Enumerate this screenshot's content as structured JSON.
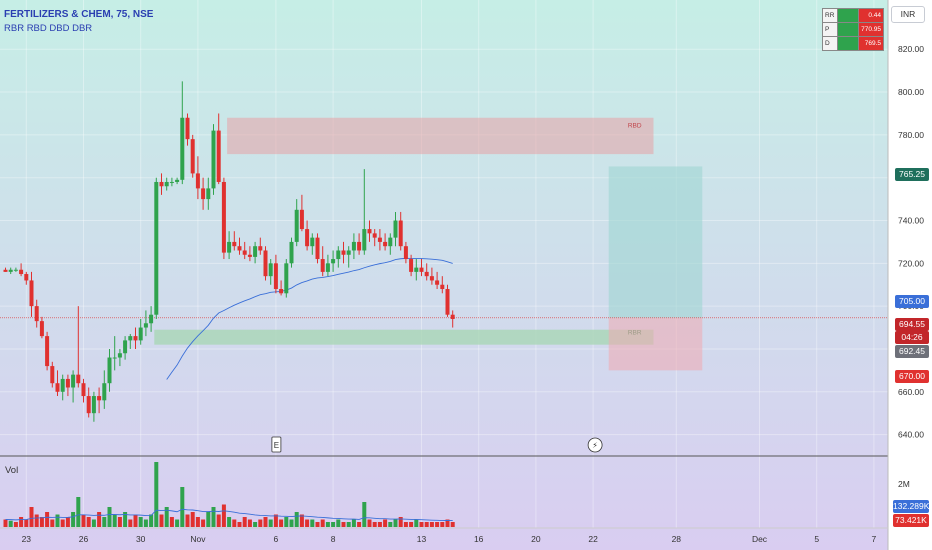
{
  "header": {
    "title": "FERTILIZERS & CHEM, 75, NSE",
    "indicator": "RBR RBD DBD DBR"
  },
  "currency": "INR",
  "rr_panel": {
    "rows": [
      {
        "label": "RR",
        "value": "0.44"
      },
      {
        "label": "P",
        "value": "770.95"
      },
      {
        "label": "D",
        "value": "769.5"
      }
    ]
  },
  "zones": {
    "rbd": {
      "label": "RBD",
      "top": 788,
      "bottom": 771
    },
    "rbr": {
      "label": "RBR",
      "top": 689,
      "bottom": 682
    }
  },
  "position": {
    "entry": 694.55,
    "target": 765.25,
    "stop": 670.0
  },
  "price_tags": {
    "target": "765.25",
    "ema": "705.00",
    "last": "694.55",
    "countdown": "04:26",
    "gray": "692.45",
    "stop": "670.00"
  },
  "volume": {
    "label": "Vol",
    "tag_ma": "132.289K",
    "tag_last": "73.421K",
    "axis_label": "2M"
  },
  "markers": {
    "earnings": "E",
    "dividend": "⚡"
  },
  "colors": {
    "up": "#2fa34d",
    "down": "#e0312f",
    "ema": "#3a6fd8",
    "bg_top": "#c9efe7",
    "bg_bottom": "#d9cbf0"
  },
  "chart_data": {
    "type": "candlestick",
    "y_ticks": [
      640,
      660,
      680,
      700,
      720,
      740,
      760,
      780,
      800,
      820
    ],
    "y_tick_labels": [
      "640.00",
      "660.00",
      "680.00",
      "700.00",
      "720.00",
      "740.00",
      "760.00",
      "780.00",
      "800.00",
      "820.00"
    ],
    "x_labels": [
      {
        "label": "23",
        "idx": 4
      },
      {
        "label": "26",
        "idx": 15
      },
      {
        "label": "30",
        "idx": 26
      },
      {
        "label": "Nov",
        "idx": 37
      },
      {
        "label": "6",
        "idx": 52
      },
      {
        "label": "8",
        "idx": 63
      },
      {
        "label": "13",
        "idx": 80
      },
      {
        "label": "16",
        "idx": 91
      },
      {
        "label": "20",
        "idx": 102
      },
      {
        "label": "22",
        "idx": 113
      },
      {
        "label": "28",
        "idx": 129
      },
      {
        "label": "Dec",
        "idx": 145
      },
      {
        "label": "5",
        "idx": 156
      },
      {
        "label": "7",
        "idx": 167
      }
    ],
    "candles": [
      [
        717,
        718,
        716,
        716
      ],
      [
        716,
        718,
        715,
        717
      ],
      [
        717,
        718,
        716,
        717
      ],
      [
        717,
        720,
        714,
        715
      ],
      [
        715,
        716,
        710,
        712
      ],
      [
        712,
        716,
        695,
        700
      ],
      [
        700,
        703,
        690,
        693
      ],
      [
        693,
        695,
        685,
        686
      ],
      [
        686,
        688,
        670,
        672
      ],
      [
        672,
        674,
        662,
        664
      ],
      [
        664,
        670,
        658,
        660
      ],
      [
        660,
        668,
        656,
        666
      ],
      [
        666,
        668,
        658,
        662
      ],
      [
        662,
        670,
        655,
        668
      ],
      [
        668,
        700,
        662,
        664
      ],
      [
        664,
        666,
        655,
        658
      ],
      [
        658,
        662,
        648,
        650
      ],
      [
        650,
        660,
        646,
        658
      ],
      [
        658,
        662,
        650,
        656
      ],
      [
        656,
        670,
        652,
        664
      ],
      [
        664,
        680,
        660,
        676
      ],
      [
        676,
        686,
        670,
        676
      ],
      [
        676,
        680,
        672,
        678
      ],
      [
        678,
        686,
        675,
        684
      ],
      [
        684,
        687,
        680,
        686
      ],
      [
        686,
        690,
        680,
        684
      ],
      [
        684,
        694,
        682,
        690
      ],
      [
        690,
        698,
        686,
        692
      ],
      [
        692,
        700,
        688,
        696
      ],
      [
        696,
        760,
        694,
        758
      ],
      [
        758,
        762,
        752,
        756
      ],
      [
        756,
        760,
        754,
        758
      ],
      [
        758,
        760,
        756,
        758
      ],
      [
        758,
        760,
        757,
        759
      ],
      [
        759,
        805,
        757,
        788
      ],
      [
        788,
        790,
        775,
        778
      ],
      [
        778,
        780,
        760,
        762
      ],
      [
        762,
        770,
        750,
        755
      ],
      [
        755,
        760,
        745,
        750
      ],
      [
        750,
        760,
        745,
        755
      ],
      [
        755,
        785,
        752,
        782
      ],
      [
        782,
        790,
        757,
        758
      ],
      [
        758,
        760,
        722,
        725
      ],
      [
        725,
        735,
        722,
        730
      ],
      [
        730,
        735,
        726,
        728
      ],
      [
        728,
        732,
        724,
        726
      ],
      [
        726,
        730,
        722,
        724
      ],
      [
        724,
        728,
        721,
        723
      ],
      [
        723,
        730,
        720,
        728
      ],
      [
        728,
        732,
        724,
        726
      ],
      [
        726,
        728,
        712,
        714
      ],
      [
        714,
        722,
        710,
        720
      ],
      [
        720,
        724,
        706,
        708
      ],
      [
        708,
        712,
        705,
        706
      ],
      [
        706,
        722,
        704,
        720
      ],
      [
        720,
        732,
        718,
        730
      ],
      [
        730,
        750,
        728,
        745
      ],
      [
        745,
        752,
        735,
        736
      ],
      [
        736,
        740,
        726,
        728
      ],
      [
        728,
        734,
        724,
        732
      ],
      [
        732,
        734,
        720,
        722
      ],
      [
        722,
        728,
        714,
        716
      ],
      [
        716,
        724,
        714,
        720
      ],
      [
        720,
        726,
        716,
        722
      ],
      [
        722,
        728,
        718,
        726
      ],
      [
        726,
        730,
        720,
        724
      ],
      [
        724,
        728,
        718,
        726
      ],
      [
        726,
        734,
        722,
        730
      ],
      [
        730,
        734,
        724,
        726
      ],
      [
        726,
        764,
        724,
        736
      ],
      [
        736,
        740,
        730,
        734
      ],
      [
        734,
        736,
        728,
        732
      ],
      [
        732,
        736,
        726,
        730
      ],
      [
        730,
        734,
        726,
        728
      ],
      [
        728,
        734,
        724,
        732
      ],
      [
        732,
        744,
        728,
        740
      ],
      [
        740,
        744,
        726,
        728
      ],
      [
        728,
        730,
        720,
        722
      ],
      [
        722,
        724,
        714,
        716
      ],
      [
        716,
        722,
        712,
        718
      ],
      [
        718,
        722,
        714,
        716
      ],
      [
        716,
        720,
        712,
        714
      ],
      [
        714,
        718,
        710,
        712
      ],
      [
        712,
        716,
        708,
        710
      ],
      [
        710,
        714,
        706,
        708
      ],
      [
        708,
        710,
        695,
        696
      ],
      [
        696,
        698,
        690,
        694
      ]
    ],
    "volume_units": "relative",
    "volumes": [
      [
        0.3,
        0
      ],
      [
        0.25,
        1
      ],
      [
        0.2,
        0
      ],
      [
        0.4,
        0
      ],
      [
        0.3,
        0
      ],
      [
        0.8,
        0
      ],
      [
        0.5,
        0
      ],
      [
        0.4,
        0
      ],
      [
        0.6,
        0
      ],
      [
        0.3,
        0
      ],
      [
        0.5,
        1
      ],
      [
        0.3,
        0
      ],
      [
        0.4,
        0
      ],
      [
        0.6,
        1
      ],
      [
        1.2,
        1
      ],
      [
        0.5,
        0
      ],
      [
        0.4,
        0
      ],
      [
        0.3,
        1
      ],
      [
        0.6,
        0
      ],
      [
        0.4,
        1
      ],
      [
        0.8,
        1
      ],
      [
        0.5,
        1
      ],
      [
        0.4,
        0
      ],
      [
        0.6,
        1
      ],
      [
        0.3,
        0
      ],
      [
        0.5,
        0
      ],
      [
        0.4,
        1
      ],
      [
        0.3,
        1
      ],
      [
        0.5,
        1
      ],
      [
        2.6,
        1
      ],
      [
        0.5,
        0
      ],
      [
        0.8,
        1
      ],
      [
        0.4,
        0
      ],
      [
        0.3,
        1
      ],
      [
        1.6,
        1
      ],
      [
        0.5,
        0
      ],
      [
        0.6,
        0
      ],
      [
        0.4,
        0
      ],
      [
        0.3,
        0
      ],
      [
        0.6,
        1
      ],
      [
        0.8,
        1
      ],
      [
        0.5,
        0
      ],
      [
        0.9,
        0
      ],
      [
        0.4,
        1
      ],
      [
        0.3,
        0
      ],
      [
        0.2,
        0
      ],
      [
        0.4,
        0
      ],
      [
        0.3,
        0
      ],
      [
        0.2,
        1
      ],
      [
        0.3,
        0
      ],
      [
        0.4,
        0
      ],
      [
        0.3,
        1
      ],
      [
        0.5,
        0
      ],
      [
        0.3,
        0
      ],
      [
        0.4,
        1
      ],
      [
        0.3,
        1
      ],
      [
        0.6,
        1
      ],
      [
        0.5,
        0
      ],
      [
        0.3,
        0
      ],
      [
        0.3,
        1
      ],
      [
        0.2,
        0
      ],
      [
        0.3,
        0
      ],
      [
        0.2,
        1
      ],
      [
        0.2,
        1
      ],
      [
        0.3,
        1
      ],
      [
        0.2,
        0
      ],
      [
        0.2,
        1
      ],
      [
        0.3,
        1
      ],
      [
        0.2,
        0
      ],
      [
        1.0,
        1
      ],
      [
        0.3,
        0
      ],
      [
        0.2,
        0
      ],
      [
        0.2,
        0
      ],
      [
        0.3,
        0
      ],
      [
        0.2,
        1
      ],
      [
        0.3,
        1
      ],
      [
        0.4,
        0
      ],
      [
        0.2,
        0
      ],
      [
        0.2,
        0
      ],
      [
        0.3,
        1
      ],
      [
        0.2,
        0
      ],
      [
        0.2,
        0
      ],
      [
        0.2,
        0
      ],
      [
        0.2,
        0
      ],
      [
        0.2,
        0
      ],
      [
        0.3,
        0
      ],
      [
        0.2,
        0
      ]
    ]
  }
}
